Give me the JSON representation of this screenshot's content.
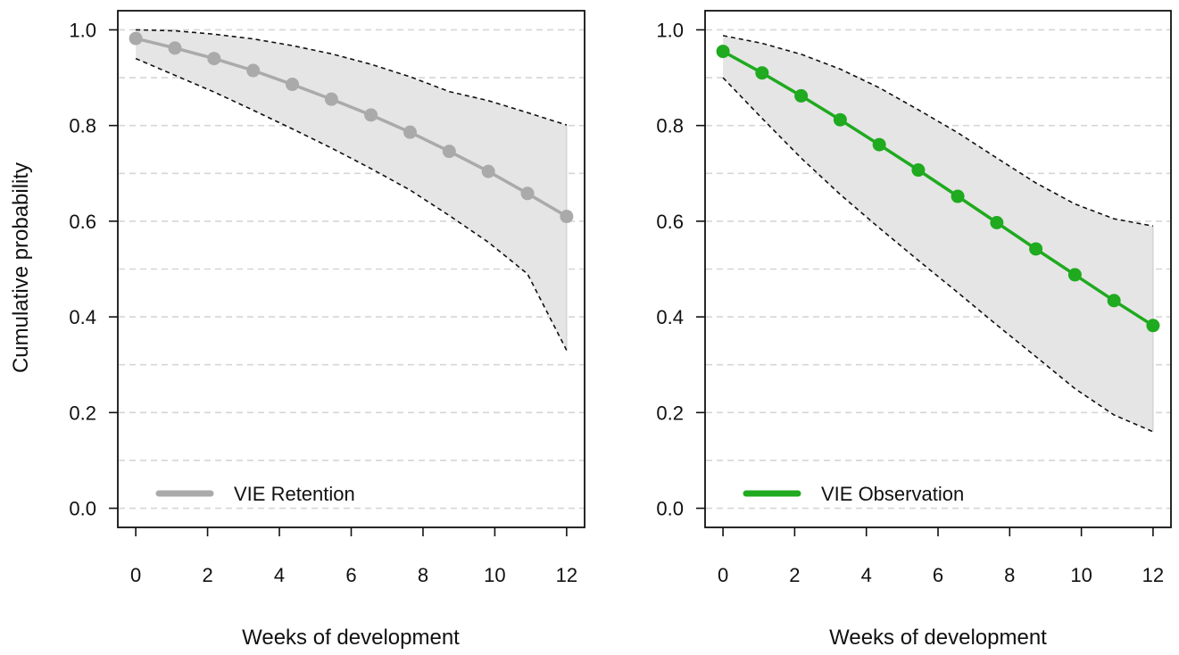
{
  "ylabel": "Cumulative probability",
  "chart_data": [
    {
      "type": "line",
      "title": "",
      "xlabel": "Weeks of development",
      "ylabel": "Cumulative probability",
      "xlim": [
        -0.5,
        12.5
      ],
      "ylim": [
        -0.04,
        1.04
      ],
      "xticks": [
        0,
        2,
        4,
        6,
        8,
        10,
        12
      ],
      "yticks": [
        0.0,
        0.2,
        0.4,
        0.6,
        0.8,
        1.0
      ],
      "grid": "horizontal dashed",
      "legend_position": "bottom-left",
      "color": "#aaaaaa",
      "series": [
        {
          "name": "VIE Retention",
          "x": [
            0,
            1.09,
            2.18,
            3.27,
            4.36,
            5.45,
            6.55,
            7.64,
            8.73,
            9.82,
            10.91,
            12
          ],
          "values": [
            0.982,
            0.962,
            0.94,
            0.915,
            0.886,
            0.855,
            0.822,
            0.786,
            0.746,
            0.704,
            0.658,
            0.61
          ],
          "upper": [
            1.0,
            0.998,
            0.991,
            0.981,
            0.967,
            0.95,
            0.928,
            0.902,
            0.871,
            0.852,
            0.827,
            0.801
          ],
          "lower": [
            0.94,
            0.905,
            0.87,
            0.832,
            0.793,
            0.753,
            0.71,
            0.665,
            0.612,
            0.556,
            0.49,
            0.33
          ]
        }
      ]
    },
    {
      "type": "line",
      "title": "",
      "xlabel": "Weeks of development",
      "ylabel": "",
      "xlim": [
        -0.5,
        12.5
      ],
      "ylim": [
        -0.04,
        1.04
      ],
      "xticks": [
        0,
        2,
        4,
        6,
        8,
        10,
        12
      ],
      "yticks": [
        0.0,
        0.2,
        0.4,
        0.6,
        0.8,
        1.0
      ],
      "grid": "horizontal dashed",
      "legend_position": "bottom-left",
      "color": "#1faa1f",
      "series": [
        {
          "name": "VIE Observation",
          "x": [
            0,
            1.09,
            2.18,
            3.27,
            4.36,
            5.45,
            6.55,
            7.64,
            8.73,
            9.82,
            10.91,
            12
          ],
          "values": [
            0.955,
            0.91,
            0.862,
            0.812,
            0.76,
            0.707,
            0.652,
            0.597,
            0.542,
            0.488,
            0.434,
            0.382
          ],
          "upper": [
            0.988,
            0.972,
            0.949,
            0.918,
            0.879,
            0.833,
            0.785,
            0.732,
            0.68,
            0.636,
            0.605,
            0.59
          ],
          "lower": [
            0.9,
            0.815,
            0.732,
            0.656,
            0.586,
            0.518,
            0.451,
            0.383,
            0.317,
            0.25,
            0.195,
            0.16
          ]
        }
      ]
    }
  ]
}
